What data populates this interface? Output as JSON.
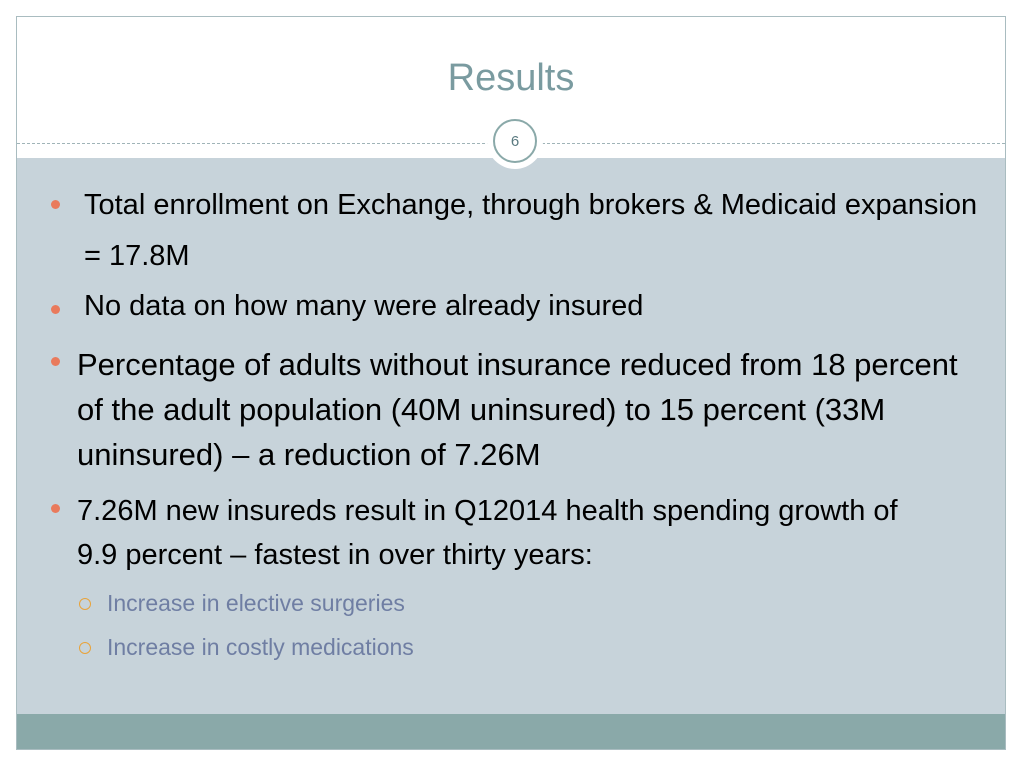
{
  "slide": {
    "title": "Results",
    "number": "6",
    "bullets": [
      {
        "text": "Total enrollment on Exchange, through brokers & Medicaid expansion = 17.8M"
      },
      {
        "text": "No data on how many were already insured"
      },
      {
        "text": "Percentage of adults without insurance reduced from 18 percent of the adult population (40M uninsured) to 15 percent (33M uninsured) – a reduction of 7.26M"
      },
      {
        "text": "7.26M new insureds result in Q12014 health spending growth of 9.9 percent – fastest in over thirty years:"
      }
    ],
    "sub_bullets": [
      {
        "text": "Increase in elective surgeries"
      },
      {
        "text": "Increase in costly medications"
      }
    ]
  },
  "colors": {
    "title": "#7a9ba0",
    "body_background": "#c7d3da",
    "footer": "#8aa9a9",
    "bullet": "#e97a5c",
    "sub_bullet_marker": "#e9a33a",
    "sub_bullet_text": "#6f7ea3"
  }
}
